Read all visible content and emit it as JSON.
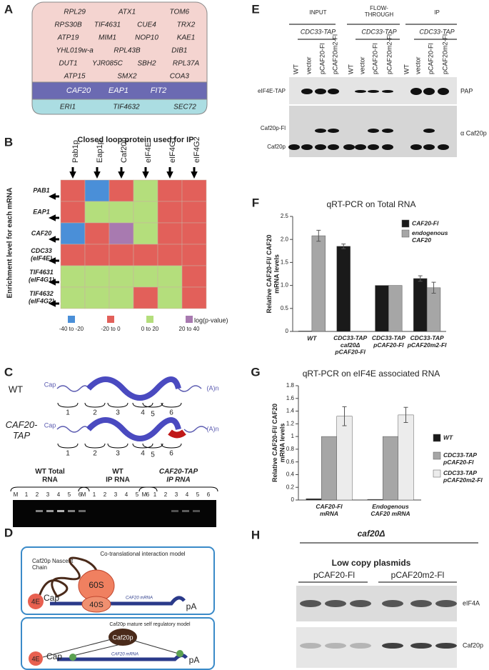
{
  "panels": {
    "A": {
      "label": "A",
      "rows": [
        [
          "RPL29",
          "ATX1",
          "TOM6"
        ],
        [
          "RPS30B",
          "TIF4631",
          "CUE4",
          "TRX2"
        ],
        [
          "ATP19",
          "MIM1",
          "NOP10",
          "KAE1"
        ],
        [
          "YHL019w-a",
          "RPL43B",
          "DIB1"
        ],
        [
          "DUT1",
          "YJR085C",
          "SBH2",
          "RPL37A"
        ],
        [
          "ATP15",
          "SMX2",
          "COA3"
        ]
      ],
      "purple": [
        "CAF20",
        "EAP1",
        "FIT2"
      ],
      "blue": [
        "ERI1",
        "TIF4632",
        "SEC72"
      ]
    },
    "B": {
      "label": "B",
      "title": "Closed loop protein used for IP",
      "columns": [
        "Pab1p",
        "Eap1p",
        "Caf20p",
        "eIF4E",
        "eIF4G1",
        "eIF4G2"
      ],
      "y_label": "Enrichment level for each mRNA",
      "rows": [
        "PAB1",
        "EAP1",
        "CAF20",
        "CDC33\n(eIF4E)",
        "TIF4631\n(eIF4G1)",
        "TIF4632\n(eIF4G2)"
      ],
      "cell_levels": [
        [
          1,
          0,
          1,
          2,
          1,
          1
        ],
        [
          1,
          2,
          2,
          2,
          1,
          1
        ],
        [
          0,
          1,
          3,
          2,
          1,
          1
        ],
        [
          1,
          1,
          1,
          1,
          1,
          1
        ],
        [
          2,
          2,
          2,
          2,
          2,
          1
        ],
        [
          2,
          2,
          2,
          1,
          2,
          1
        ]
      ],
      "legend": [
        "-40 to -20",
        "-20 to 0",
        "0 to 20",
        "20 to 40"
      ],
      "legend_colors": [
        "#4a8fd8",
        "#e2605a",
        "#b4de7c",
        "#a87ab0"
      ],
      "legend_title": "log(p-value)"
    },
    "C": {
      "label": "C",
      "wt": "WT",
      "tap": "CAF20-\nTAP",
      "cap": "Cap",
      "polya": "(A)n",
      "segments": [
        "1",
        "2",
        "3",
        "4",
        "5",
        "6"
      ],
      "gel_titles": [
        "WT Total\nRNA",
        "WT\nIP RNA",
        "CAF20-TAP\nIP RNA"
      ],
      "lanes": [
        "M",
        "1",
        "2",
        "3",
        "4",
        "5",
        "6"
      ]
    },
    "D": {
      "label": "D",
      "top_title": "Co-translational interaction model",
      "nascent": "Caf20p Nascent\nChain",
      "s60": "60S",
      "s40": "40S",
      "e4": "4E",
      "cap": "Cap",
      "mrna": "CAF20 mRNA",
      "pa": "pA",
      "bottom_title": "Caf20p mature self regulatory model",
      "caf20p": "Caf20p"
    },
    "E": {
      "label": "E",
      "groups": [
        "INPUT",
        "FLOW-\nTHROUGH",
        "IP"
      ],
      "strain": "CDC33-TAP",
      "lanes": [
        "WT",
        "vector",
        "pCAF20-Fl",
        "pCAF20m2-Fl"
      ],
      "left": [
        "eIF4E-TAP",
        "Caf20p-Fl",
        "Caf20p"
      ],
      "right": [
        "PAP",
        "α Caf20p"
      ]
    },
    "H": {
      "label": "H",
      "strain": "caf20Δ",
      "sub": "Low copy plasmids",
      "groups": [
        "pCAF20-Fl",
        "pCAF20m2-Fl"
      ],
      "right": [
        "eIF4A",
        "Caf20p"
      ]
    }
  },
  "chart_data": [
    {
      "type": "bar",
      "label": "F",
      "title": "qRT-PCR on Total RNA",
      "y_label": "Relative CAF20-Fl/ CAF20\nmRNA levels",
      "categories": [
        "WT",
        "CDC33-TAP\ncaf20Δ\npCAF20-Fl",
        "CDC33-TAP\npCAF20-Fl",
        "CDC33-TAP\npCAF20m2-Fl"
      ],
      "series": [
        {
          "name": "CAF20-Fl",
          "color": "#1a1a1a",
          "values": [
            0.01,
            1.85,
            1.0,
            1.15
          ],
          "errors": [
            0,
            0.05,
            0,
            0.06
          ]
        },
        {
          "name": "endogenous\nCAF20",
          "color": "#a6a6a6",
          "values": [
            2.08,
            null,
            1.0,
            0.95
          ],
          "errors": [
            0.12,
            null,
            0,
            0.12
          ]
        }
      ],
      "ylim": [
        0,
        2.5
      ],
      "yticks": [
        0,
        0.5,
        {
          "value": 1,
          "label": "1.0"
        },
        1.5,
        {
          "value": 2,
          "label": "2.0"
        },
        2.5
      ]
    },
    {
      "type": "bar",
      "label": "G",
      "title": "qRT-PCR on eIF4E associated RNA",
      "y_label": "Relative CAF20-Fl/ CAF20\nmRNA levels",
      "categories": [
        "CAF20-Fl\nmRNA",
        "Endogenous\nCAF20 mRNA"
      ],
      "series": [
        {
          "name": "WT",
          "color": "#1a1a1a",
          "values": [
            0.02,
            0.01
          ],
          "errors": [
            0,
            0
          ]
        },
        {
          "name": "CDC33-TAP\npCAF20-Fl",
          "color": "#a6a6a6",
          "values": [
            1.0,
            1.0
          ],
          "errors": [
            0,
            0
          ]
        },
        {
          "name": "CDC33-TAP\npCAF20m2-Fl",
          "color": "#ececec",
          "values": [
            1.32,
            1.34
          ],
          "errors": [
            0.15,
            0.12
          ]
        }
      ],
      "ylim": [
        0,
        1.8
      ],
      "yticks": [
        0,
        0.2,
        0.4,
        0.6,
        0.8,
        1,
        1.2,
        1.4,
        1.6,
        1.8
      ]
    }
  ]
}
